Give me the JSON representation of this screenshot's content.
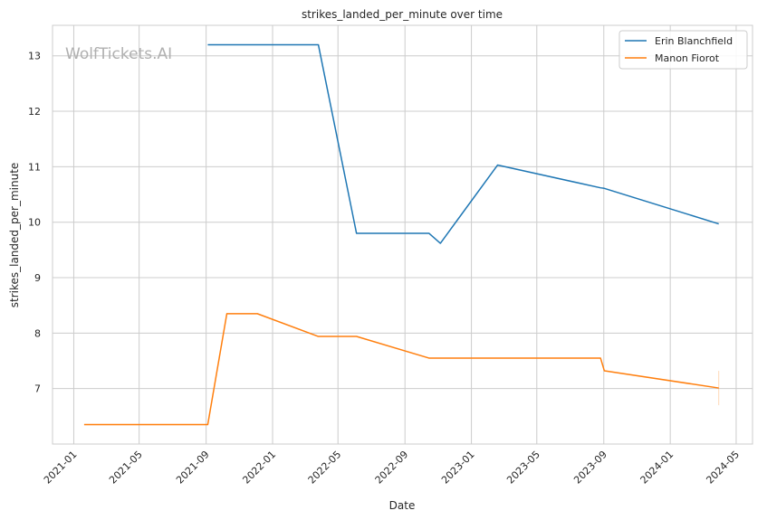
{
  "chart_data": {
    "type": "line",
    "title": "strikes_landed_per_minute over time",
    "xlabel": "Date",
    "ylabel": "strikes_landed_per_minute",
    "watermark": "WolfTickets.AI",
    "x_ticks": [
      "2021-01",
      "2021-05",
      "2021-09",
      "2022-01",
      "2022-05",
      "2022-09",
      "2023-01",
      "2023-05",
      "2023-09",
      "2024-01",
      "2024-05"
    ],
    "y_ticks": [
      7,
      8,
      9,
      10,
      11,
      12,
      13
    ],
    "xlim": [
      "2020-11-23",
      "2024-05-31"
    ],
    "ylim": [
      6.0,
      13.55
    ],
    "grid": true,
    "legend_position": "top-right",
    "series": [
      {
        "name": "Erin Blanchfield",
        "color": "#1f77b4",
        "points": [
          [
            "2021-09-04",
            13.2
          ],
          [
            "2022-03-26",
            13.2
          ],
          [
            "2022-06-04",
            9.8
          ],
          [
            "2022-10-15",
            9.8
          ],
          [
            "2022-11-05",
            9.62
          ],
          [
            "2023-02-18",
            11.03
          ],
          [
            "2023-08-26",
            10.62
          ],
          [
            "2023-09-02",
            10.61
          ],
          [
            "2024-03-30",
            9.97
          ]
        ]
      },
      {
        "name": "Manon Fiorot",
        "color": "#ff7f0e",
        "points": [
          [
            "2021-01-20",
            6.35
          ],
          [
            "2021-09-04",
            6.35
          ],
          [
            "2021-10-09",
            8.35
          ],
          [
            "2021-12-04",
            8.35
          ],
          [
            "2022-03-26",
            7.94
          ],
          [
            "2022-06-04",
            7.94
          ],
          [
            "2022-10-15",
            7.55
          ],
          [
            "2023-08-26",
            7.55
          ],
          [
            "2023-09-02",
            7.32
          ],
          [
            "2024-03-30",
            7.01
          ]
        ]
      }
    ]
  }
}
